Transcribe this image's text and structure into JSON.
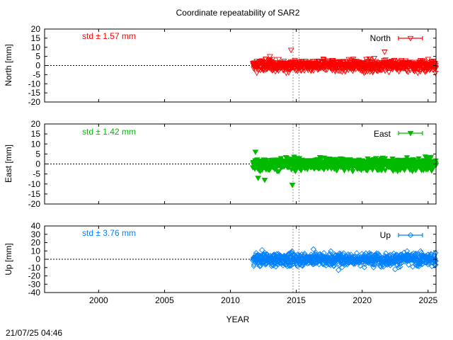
{
  "chart_data": {
    "type": "scatter",
    "title": "Coordinate repeatability of SAR2",
    "xlabel": "YEAR",
    "xlim": [
      1995.9,
      2025.6
    ],
    "xticks": [
      2000,
      2005,
      2010,
      2015,
      2020,
      2025
    ],
    "event_lines": [
      2014.75,
      2015.2
    ],
    "data_span": [
      2011.7,
      2025.6
    ],
    "timestamp": "21/07/25 04:46",
    "panels": [
      {
        "id": "north",
        "ylabel": "North [mm]",
        "legend": "North",
        "legend_position": "top-right",
        "color": "#ff0000",
        "marker": "triangle-down-open",
        "std_text": "std ± 1.57 mm",
        "std": 1.57,
        "ylim": [
          -20,
          20
        ],
        "yticks": [
          -20,
          -15,
          -10,
          -5,
          0,
          5,
          10,
          15,
          20
        ],
        "outliers": [
          [
            2014.6,
            8.5
          ],
          [
            2021.7,
            7.5
          ],
          [
            2012.0,
            -4.0
          ],
          [
            2013.0,
            5.0
          ]
        ]
      },
      {
        "id": "east",
        "ylabel": "East [mm]",
        "legend": "East",
        "legend_position": "top-right",
        "color": "#00bb00",
        "marker": "triangle-down-filled",
        "std_text": "std ± 1.42 mm",
        "std": 1.42,
        "ylim": [
          -20,
          20
        ],
        "yticks": [
          -20,
          -15,
          -10,
          -5,
          0,
          5,
          10,
          15,
          20
        ],
        "outliers": [
          [
            2014.7,
            -10.5
          ],
          [
            2011.9,
            6.0
          ],
          [
            2012.1,
            -7.0
          ],
          [
            2012.6,
            -8.0
          ]
        ]
      },
      {
        "id": "up",
        "ylabel": "Up [mm]",
        "legend": "Up",
        "legend_position": "top-right",
        "color": "#0080ff",
        "marker": "diamond-open",
        "std_text": "std ± 3.76 mm",
        "std": 3.76,
        "ylim": [
          -40,
          40
        ],
        "yticks": [
          -40,
          -30,
          -20,
          -10,
          0,
          10,
          20,
          30,
          40
        ],
        "outliers": [
          [
            2016.3,
            12.0
          ],
          [
            2018.2,
            -13.0
          ],
          [
            2012.4,
            11.0
          ],
          [
            2022.5,
            -12.0
          ]
        ]
      }
    ]
  }
}
